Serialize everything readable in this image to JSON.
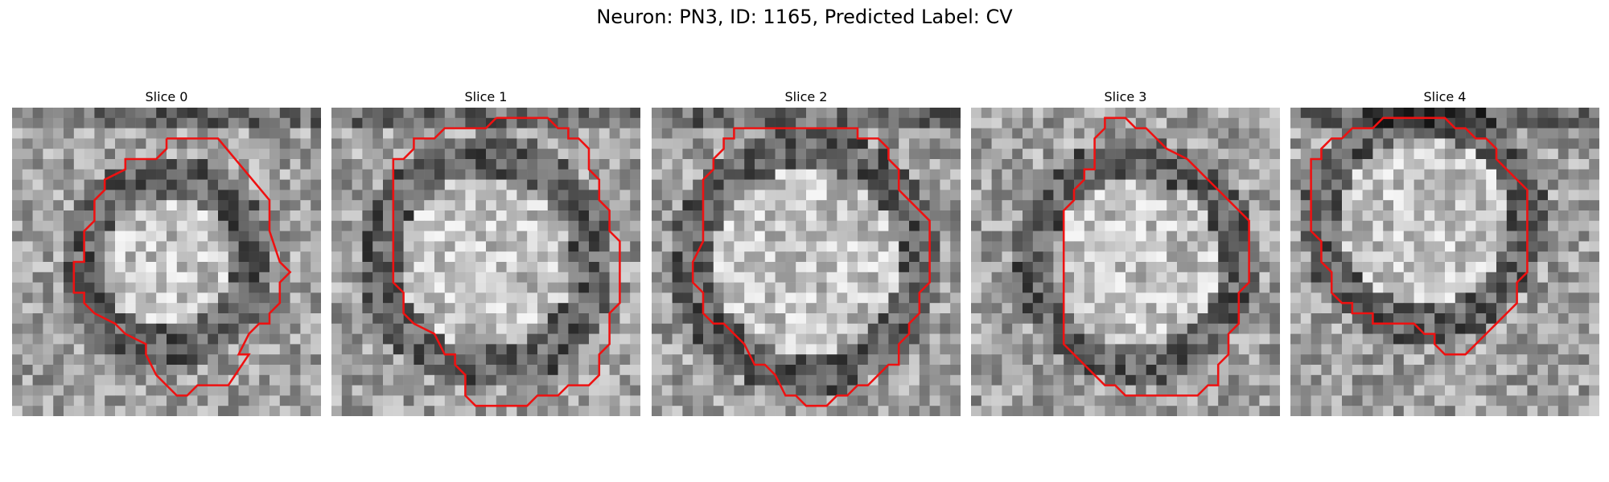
{
  "figure": {
    "title": "Neuron: PN3, ID: 1165, Predicted Label: CV",
    "outline_color": "#ee1111"
  },
  "panels": [
    {
      "title": "Slice 0"
    },
    {
      "title": "Slice 1"
    },
    {
      "title": "Slice 2"
    },
    {
      "title": "Slice 3"
    },
    {
      "title": "Slice 4"
    }
  ]
}
